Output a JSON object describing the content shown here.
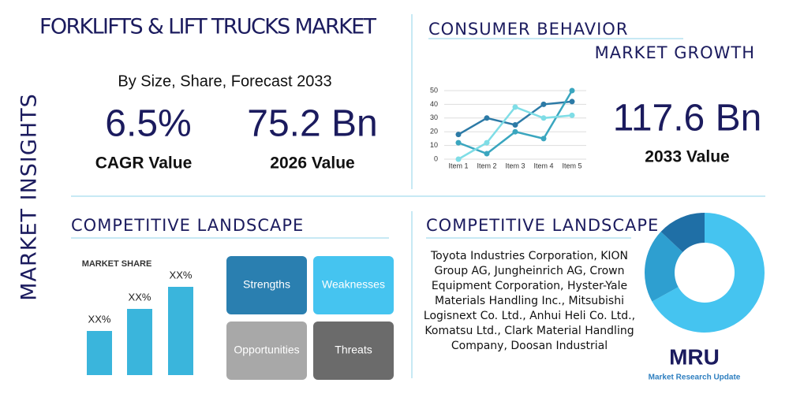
{
  "header": {
    "title": "FORKLIFTS & LIFT TRUCKS MARKET",
    "side_label": "MARKET INSIGHTS",
    "subtitle": "By Size, Share, Forecast 2033"
  },
  "stats": [
    {
      "value": "6.5%",
      "label": "CAGR Value"
    },
    {
      "value": "75.2 Bn",
      "label": "2026 Value"
    },
    {
      "value": "117.6 Bn",
      "label": "2033 Value"
    }
  ],
  "sections": {
    "consumer": "CONSUMER BEHAVIOR",
    "growth": "MARKET GROWTH",
    "competitive_left": "COMPETITIVE LANDSCAPE",
    "competitive_right": "COMPETITIVE LANDSCAPE"
  },
  "swot": [
    "Strengths",
    "Weaknesses",
    "Opportunities",
    "Threats"
  ],
  "companies": "Toyota Industries Corporation, KION Group AG, Jungheinrich AG, Crown Equipment Corporation, Hyster-Yale Materials Handling Inc., Mitsubishi Logisnext Co. Ltd., Anhui Heli Co. Ltd., Komatsu Ltd., Clark Material Handling Company, Doosan Industrial",
  "logo": {
    "mark": "MRU",
    "name": "Market Research Update"
  },
  "chart_data": [
    {
      "type": "line",
      "categories": [
        "Item 1",
        "Item 2",
        "Item 3",
        "Item 4",
        "Item 5"
      ],
      "series": [
        {
          "color": "#2c7aa6",
          "values": [
            18,
            30,
            25,
            40,
            42
          ]
        },
        {
          "color": "#3aa6bf",
          "values": [
            12,
            4,
            20,
            15,
            50
          ]
        },
        {
          "color": "#7fdde6",
          "values": [
            0,
            12,
            38,
            30,
            32
          ]
        }
      ],
      "ylim": [
        0,
        50
      ],
      "yticks": [
        0,
        10,
        20,
        30,
        40,
        50
      ],
      "grid": true
    },
    {
      "type": "bar",
      "title": "MARKET SHARE",
      "categories": [
        null,
        null,
        null
      ],
      "values": [
        2,
        3,
        4
      ],
      "value_labels": [
        "XX%",
        "XX%",
        "XX%"
      ],
      "color": "#3ab5dc"
    },
    {
      "type": "pie",
      "values": [
        67,
        20,
        13
      ],
      "colors": [
        "#45c4f0",
        "#2e9fd0",
        "#1f6fa6"
      ],
      "donut": true
    }
  ]
}
